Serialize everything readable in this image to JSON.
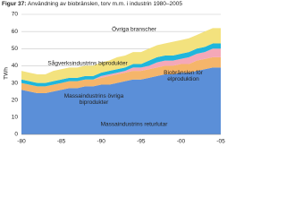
{
  "chart_data": {
    "type": "stacked_area",
    "figure_label": "Figur 37:",
    "title": "Användning av biobränslen, torv m.m. i industrin 1980–2005",
    "y_label": "TWh",
    "categories": [
      "-80",
      null,
      null,
      null,
      null,
      "-85",
      null,
      null,
      null,
      null,
      "-90",
      null,
      null,
      null,
      null,
      "-95",
      null,
      null,
      null,
      null,
      "-00",
      null,
      null,
      null,
      null,
      "-05"
    ],
    "series": [
      {
        "name": "Massaindustrins returlutar",
        "color": "#5b8fd8",
        "values": [
          26,
          25,
          24,
          24,
          25,
          26,
          27,
          27,
          28,
          28,
          29,
          29,
          30,
          31,
          32,
          32,
          33,
          34,
          35,
          35,
          36,
          36,
          37,
          38,
          39,
          39
        ]
      },
      {
        "name": "Massaindustrins övriga biprodukter",
        "color": "#f5b56a",
        "values": [
          4,
          4,
          4,
          4,
          4,
          4,
          4,
          4,
          4,
          4,
          4,
          5,
          5,
          5,
          5,
          5,
          5,
          5,
          5,
          5,
          5,
          5,
          6,
          6,
          6,
          6
        ]
      },
      {
        "name": "Biobränslen för elproduktion",
        "color": "#f5a8b8",
        "values": [
          0,
          0,
          0,
          0,
          0,
          0,
          0,
          0,
          0,
          0,
          1,
          1,
          1,
          1,
          2,
          2,
          2,
          3,
          3,
          3,
          3,
          4,
          4,
          4,
          5,
          5
        ]
      },
      {
        "name": "Sågverksindustrins biprodukter",
        "color": "#1fb6dc",
        "values": [
          2,
          2,
          2,
          2,
          2,
          2,
          2,
          2,
          2,
          2,
          2,
          2,
          2,
          2,
          2,
          2,
          3,
          3,
          3,
          3,
          3,
          3,
          3,
          3,
          3,
          3
        ]
      },
      {
        "name": "Övriga branscher",
        "color": "#f3e27e",
        "values": [
          5,
          5,
          5,
          5,
          6,
          6,
          6,
          6,
          6,
          6,
          6,
          6,
          7,
          7,
          7,
          7,
          7,
          7,
          7,
          8,
          8,
          8,
          8,
          9,
          9,
          9
        ]
      }
    ],
    "ylim": [
      0,
      70
    ],
    "yticks": [
      0,
      10,
      20,
      30,
      40,
      50,
      60,
      70
    ],
    "grid": true
  }
}
